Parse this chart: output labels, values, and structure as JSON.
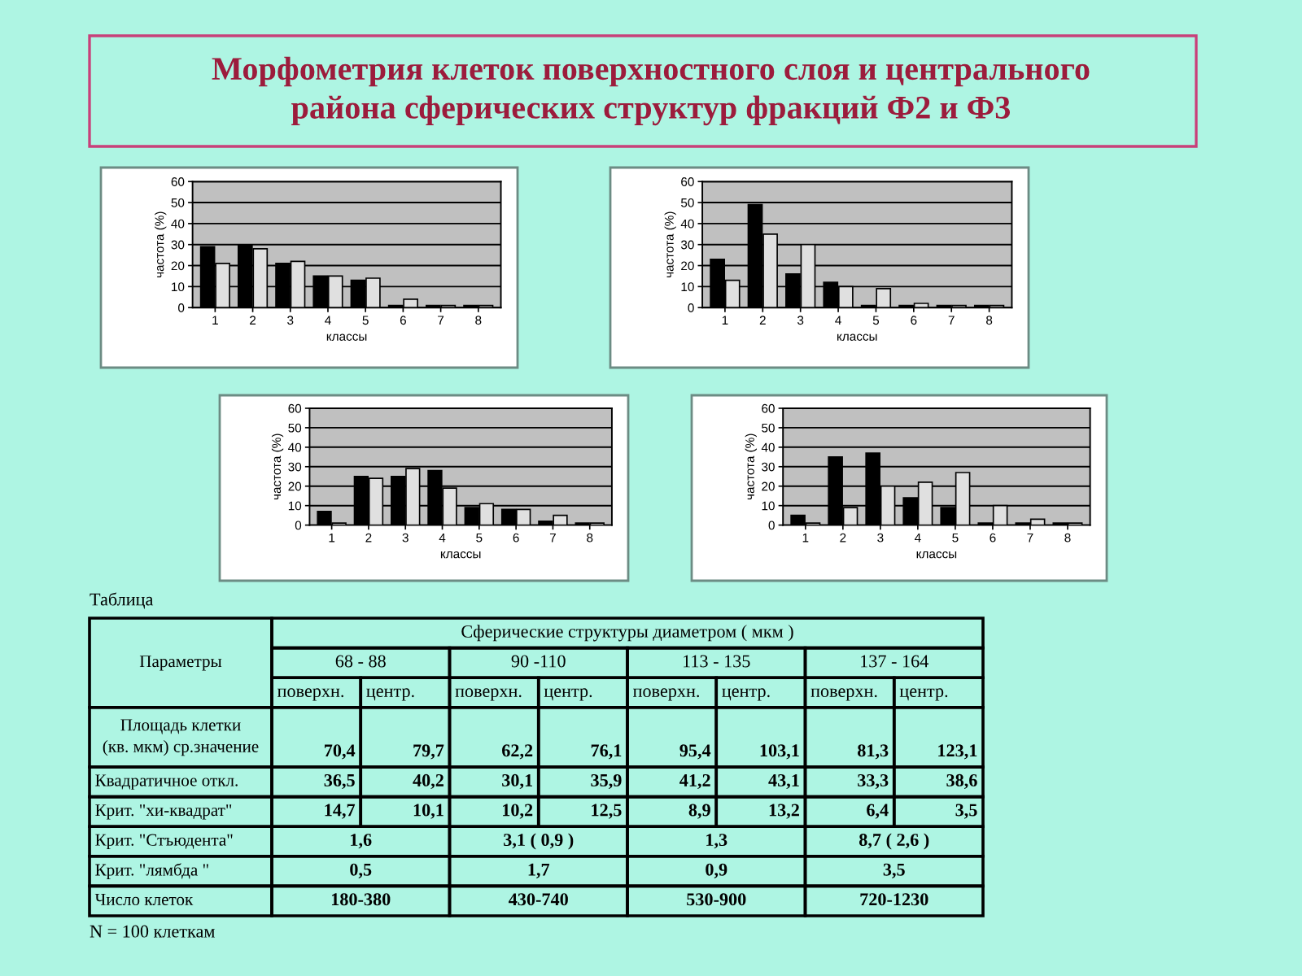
{
  "chart_data": [
    {
      "type": "bar",
      "title": "Морфометрия клеток поверхностного слоя и центрального\nрайона сферических структур фракций Ф2 и Ф3",
      "categories": [
        "1",
        "2",
        "3",
        "4",
        "5",
        "6",
        "7",
        "8"
      ],
      "series": [
        {
          "color": "#000000",
          "values": [
            29,
            30,
            21,
            15,
            13,
            1,
            1,
            1
          ]
        },
        {
          "color": "#e0e0e0",
          "values": [
            21,
            28,
            22,
            15,
            14,
            4,
            1,
            1
          ]
        }
      ],
      "ylim": [
        0,
        60
      ],
      "yticks": [
        0,
        10,
        20,
        30,
        40,
        50,
        60
      ],
      "grid": "y",
      "xlabel": "классы",
      "ylabel": "частота (%)"
    },
    {
      "type": "bar",
      "categories": [
        "1",
        "2",
        "3",
        "4",
        "5",
        "6",
        "7",
        "8"
      ],
      "series": [
        {
          "color": "#000000",
          "values": [
            23,
            49,
            16,
            12,
            1,
            1,
            1,
            1
          ]
        },
        {
          "color": "#e0e0e0",
          "values": [
            13,
            35,
            30,
            10,
            9,
            2,
            1,
            1
          ]
        }
      ],
      "ylim": [
        0,
        60
      ],
      "yticks": [
        0,
        10,
        20,
        30,
        40,
        50,
        60
      ],
      "grid": "y",
      "xlabel": "классы",
      "ylabel": "частота (%)"
    },
    {
      "type": "bar",
      "categories": [
        "1",
        "2",
        "3",
        "4",
        "5",
        "6",
        "7",
        "8"
      ],
      "series": [
        {
          "color": "#000000",
          "values": [
            7,
            25,
            25,
            28,
            9,
            8,
            2,
            1
          ]
        },
        {
          "color": "#e0e0e0",
          "values": [
            1,
            24,
            29,
            19,
            11,
            8,
            5,
            1
          ]
        }
      ],
      "ylim": [
        0,
        60
      ],
      "yticks": [
        0,
        10,
        20,
        30,
        40,
        50,
        60
      ],
      "grid": "y",
      "xlabel": "классы",
      "ylabel": "частота (%)"
    },
    {
      "type": "bar",
      "categories": [
        "1",
        "2",
        "3",
        "4",
        "5",
        "6",
        "7",
        "8"
      ],
      "series": [
        {
          "color": "#000000",
          "values": [
            5,
            35,
            37,
            14,
            9,
            1,
            1,
            1
          ]
        },
        {
          "color": "#e0e0e0",
          "values": [
            1,
            9,
            20,
            22,
            27,
            10,
            3,
            1
          ]
        }
      ],
      "ylim": [
        0,
        60
      ],
      "yticks": [
        0,
        10,
        20,
        30,
        40,
        50,
        60
      ],
      "grid": "y",
      "xlabel": "классы",
      "ylabel": "частота (%)"
    },
    {
      "type": "other",
      "title": "Таблица",
      "annotations": [
        "Параметры",
        "Сферические структуры диаметром ( мкм )",
        "68 - 88",
        "90 -110",
        "113 - 135",
        "137 - 164",
        "поверхн.",
        "центр.",
        "поверхн.",
        "центр.",
        "поверхн.",
        "центр.",
        "поверхн.",
        "центр.",
        "Площадь клетки\n(кв. мкм) ср.значение",
        "70,4",
        "79,7",
        "62,2",
        "76,1",
        "95,4",
        "103,1",
        "81,3",
        "123,1",
        "Квадратичное откл.",
        "36,5",
        "40,2",
        "30,1",
        "35,9",
        "41,2",
        "43,1",
        "33,3",
        "38,6",
        "Крит. \"хи-квадрат\"",
        "14,7",
        "10,1",
        "10,2",
        "12,5",
        "8,9",
        "13,2",
        "6,4",
        "3,5",
        "Крит. \"Стъюдента\"",
        "1,6",
        "3,1 ( 0,9 )",
        "1,3",
        "8,7 ( 2,6 )",
        "Крит. \"лямбда \"",
        "0,5",
        "1,7",
        "0,9",
        "3,5",
        "Число клеток",
        "180-380",
        "430-740",
        "530-900",
        "720-1230",
        "N = 100 клеткам"
      ]
    }
  ]
}
